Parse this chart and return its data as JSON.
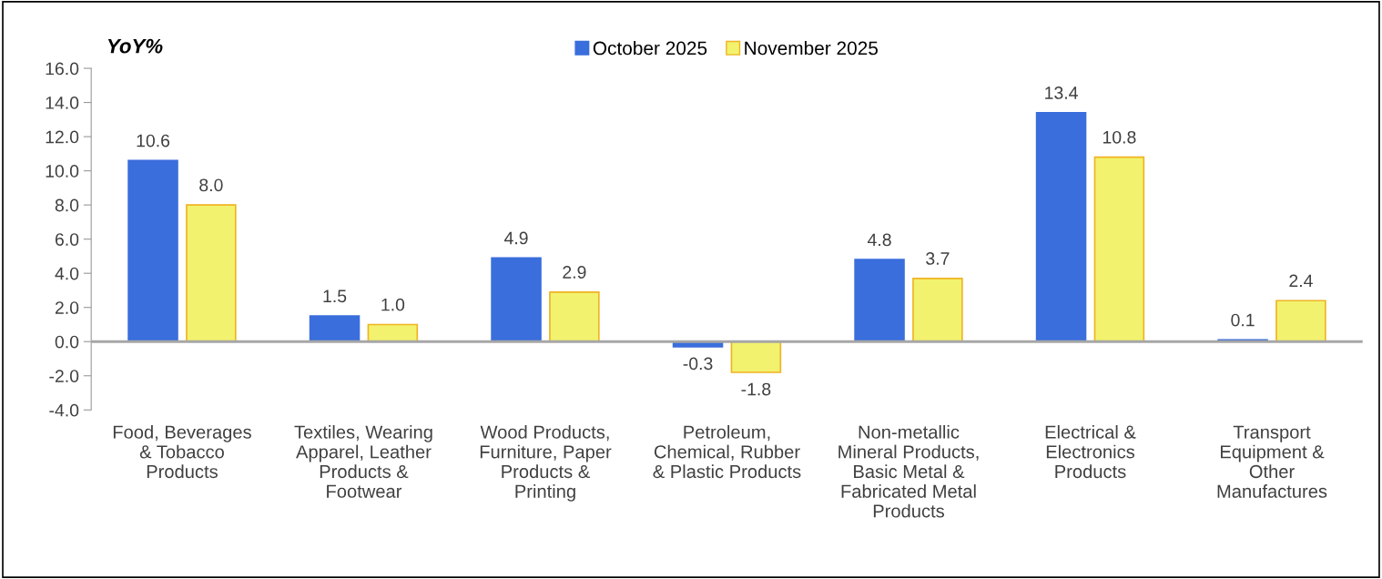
{
  "chart_data": {
    "type": "bar",
    "ylabel": "YoY%",
    "categories": [
      "Food, Beverages\n& Tobacco\nProducts",
      "Textiles, Wearing\nApparel, Leather\nProducts &\nFootwear",
      "Wood Products,\nFurniture, Paper\nProducts &\nPrinting",
      "Petroleum,\nChemical, Rubber\n& Plastic Products",
      "Non-metallic\nMineral Products,\nBasic Metal &\nFabricated Metal\nProducts",
      "Electrical &\nElectronics\nProducts",
      "Transport\nEquipment &\nOther\nManufactures"
    ],
    "series": [
      {
        "name": "October 2025",
        "color": "#3a6edc",
        "values": [
          10.6,
          1.5,
          4.9,
          -0.3,
          4.8,
          13.4,
          0.1
        ],
        "value_labels": [
          "10.6",
          "1.5",
          "4.9",
          "-0.3",
          "4.8",
          "13.4",
          "0.1"
        ]
      },
      {
        "name": "November 2025",
        "color": "#f2f26e",
        "values": [
          8.0,
          1.0,
          2.9,
          -1.8,
          3.7,
          10.8,
          2.4
        ],
        "value_labels": [
          "8.0",
          "1.0",
          "2.9",
          "-1.8",
          "3.7",
          "10.8",
          "2.4"
        ]
      }
    ],
    "ylim": [
      -4,
      16
    ],
    "yticks": [
      {
        "value": -4,
        "label": "-4.0"
      },
      {
        "value": -2,
        "label": "-2.0"
      },
      {
        "value": 0,
        "label": "0.0"
      },
      {
        "value": 2,
        "label": "2.0"
      },
      {
        "value": 4,
        "label": "4.0"
      },
      {
        "value": 6,
        "label": "6.0"
      },
      {
        "value": 8,
        "label": "8.0"
      },
      {
        "value": 10,
        "label": "10.0"
      },
      {
        "value": 12,
        "label": "12.0"
      },
      {
        "value": 14,
        "label": "14.0"
      },
      {
        "value": 16,
        "label": "16.0"
      }
    ],
    "legend": "top"
  }
}
